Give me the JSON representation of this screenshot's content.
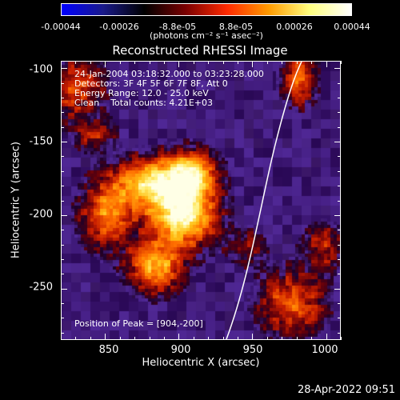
{
  "colorbar": {
    "ticks": [
      "-0.00044",
      "-0.00026",
      "-8.8e-05",
      "8.8e-05",
      "0.00026",
      "0.00044"
    ],
    "tick_values": [
      -0.00044,
      -0.00026,
      -8.8e-05,
      8.8e-05,
      0.00026,
      0.00044
    ],
    "range": [
      -0.00044,
      0.00044
    ],
    "unit": "(photons cm⁻² s⁻¹ asec⁻²)",
    "colors": [
      "#0000ff",
      "#1a1a8a",
      "#000000",
      "#7a0000",
      "#ff2a00",
      "#ff9a00",
      "#ffff80",
      "#ffffff"
    ]
  },
  "title": "Reconstructed RHESSI Image",
  "overlay": {
    "lines": [
      "24-Jan-2004 03:18:32.000 to 03:23:28.000",
      "Detectors: 3F 4F 5F 6F 7F 8F, Att 0",
      "Energy Range: 12.0 - 25.0 keV",
      "Clean    Total counts: 4.21E+03"
    ],
    "peak": "Position of Peak = [904,-200]"
  },
  "axes": {
    "xlabel": "Heliocentric X (arcsec)",
    "ylabel": "Heliocentric Y (arcsec)",
    "xlim": [
      820,
      1010
    ],
    "ylim": [
      -285,
      -95
    ],
    "xticks": [
      "850",
      "900",
      "950",
      "1000"
    ],
    "xtick_values": [
      850,
      900,
      950,
      1000
    ],
    "yticks": [
      "-100",
      "-150",
      "-200",
      "-250"
    ],
    "ytick_values": [
      -100,
      -150,
      -200,
      -250
    ]
  },
  "timestamp": "28-Apr-2022 09:51"
}
